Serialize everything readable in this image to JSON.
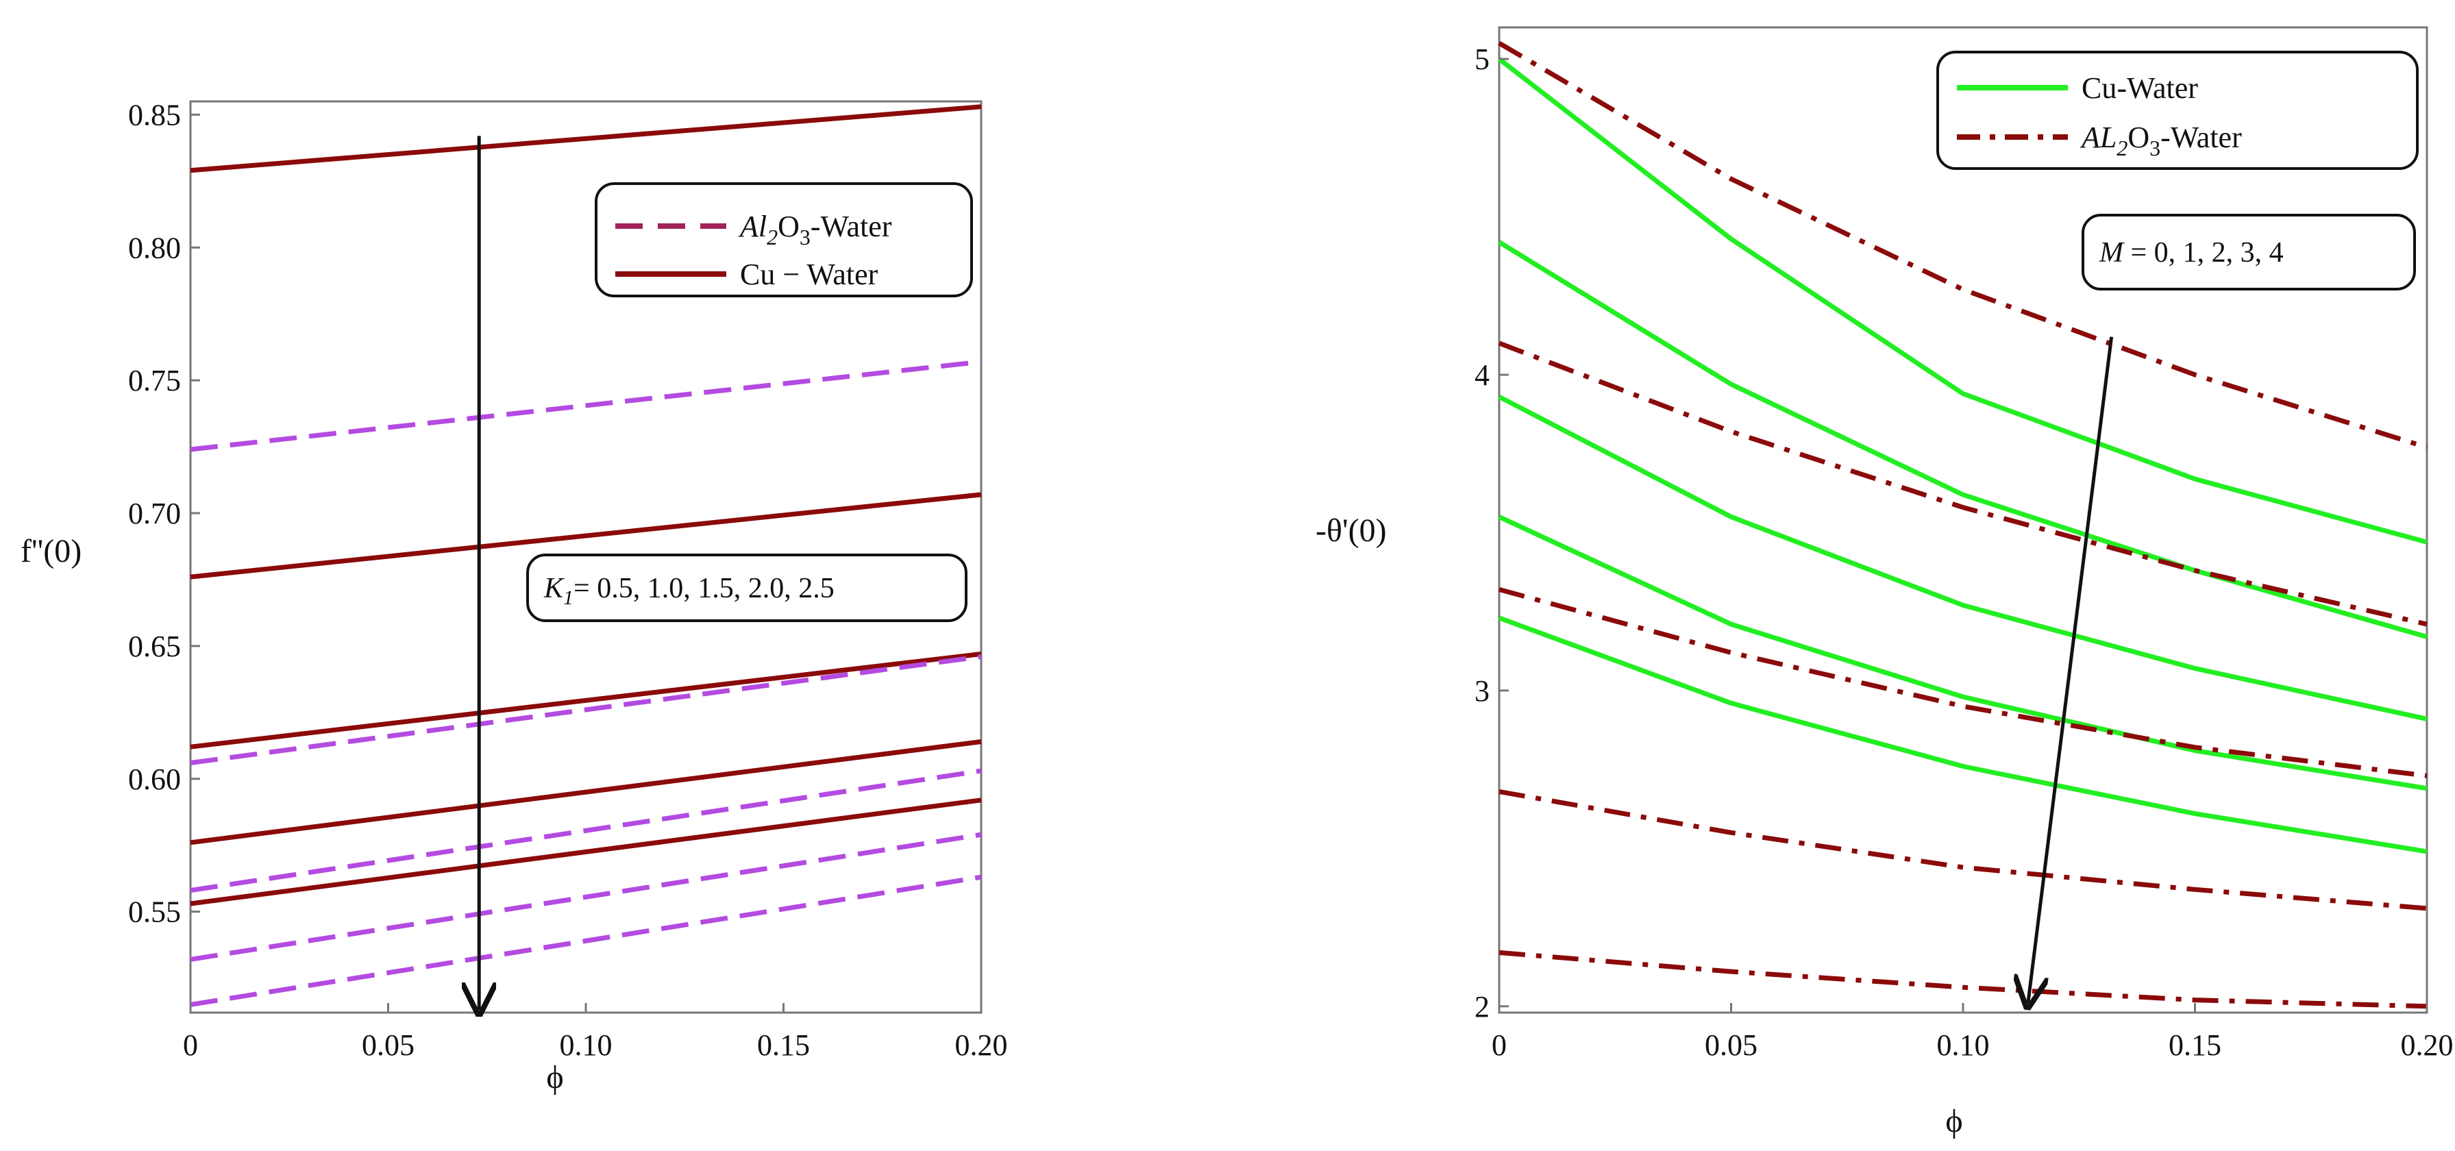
{
  "chart_data": [
    {
      "type": "line",
      "panel": "left",
      "xlabel": "ϕ",
      "ylabel": "f''(0)",
      "xlim": [
        0,
        0.2
      ],
      "ylim": [
        0.512,
        0.855
      ],
      "xticks": [
        0,
        0.05,
        0.1,
        0.15,
        0.2
      ],
      "xtick_labels": [
        "0",
        "0.05",
        "0.10",
        "0.15",
        "0.20"
      ],
      "yticks": [
        0.55,
        0.6,
        0.65,
        0.7,
        0.75,
        0.8,
        0.85
      ],
      "ytick_labels": [
        "0.55",
        "0.60",
        "0.65",
        "0.70",
        "0.75",
        "0.80",
        "0.85"
      ],
      "legend": {
        "position": "top-right",
        "entries": [
          {
            "label_base": "Al",
            "label_sub": "2",
            "label_mid": "O",
            "label_sub2": "3",
            "label_suffix": "-Water",
            "style": "dashed",
            "color": "#a0245a"
          },
          {
            "label": "Cu − Water",
            "style": "solid",
            "color": "#8b0a0a"
          }
        ]
      },
      "annotation": {
        "symbol": "K",
        "sub": "1",
        "text": "= 0.5, 1.0, 1.5, 2.0, 2.5"
      },
      "series": [
        {
          "name": "Cu-Water K1=0.5",
          "style": "solid",
          "color": "#8b0a0a",
          "x": [
            0,
            0.2
          ],
          "y": [
            0.829,
            0.853
          ]
        },
        {
          "name": "Cu-Water K1=1.0",
          "style": "solid",
          "color": "#8b0a0a",
          "x": [
            0,
            0.2
          ],
          "y": [
            0.676,
            0.707
          ]
        },
        {
          "name": "Cu-Water K1=1.5",
          "style": "solid",
          "color": "#8b0a0a",
          "x": [
            0,
            0.2
          ],
          "y": [
            0.612,
            0.647
          ]
        },
        {
          "name": "Cu-Water K1=2.0",
          "style": "solid",
          "color": "#8b0a0a",
          "x": [
            0,
            0.2
          ],
          "y": [
            0.576,
            0.614
          ]
        },
        {
          "name": "Cu-Water K1=2.5",
          "style": "solid",
          "color": "#8b0a0a",
          "x": [
            0,
            0.2
          ],
          "y": [
            0.553,
            0.592
          ]
        },
        {
          "name": "Al2O3-Water K1=0.5",
          "style": "dashed",
          "color": "#b44be1",
          "x": [
            0,
            0.2
          ],
          "y": [
            0.724,
            0.757
          ]
        },
        {
          "name": "Al2O3-Water K1=1.0",
          "style": "dashed",
          "color": "#b44be1",
          "x": [
            0,
            0.2
          ],
          "y": [
            0.606,
            0.646
          ]
        },
        {
          "name": "Al2O3-Water K1=1.5",
          "style": "dashed",
          "color": "#b44be1",
          "x": [
            0,
            0.2
          ],
          "y": [
            0.558,
            0.603
          ]
        },
        {
          "name": "Al2O3-Water K1=2.0",
          "style": "dashed",
          "color": "#b44be1",
          "x": [
            0,
            0.2
          ],
          "y": [
            0.532,
            0.579
          ]
        },
        {
          "name": "Al2O3-Water K1=2.5",
          "style": "dashed",
          "color": "#b44be1",
          "x": [
            0,
            0.2
          ],
          "y": [
            0.515,
            0.563
          ]
        }
      ],
      "arrow": {
        "x": 0.073,
        "y_from": 0.842,
        "y_to": 0.513
      }
    },
    {
      "type": "line",
      "panel": "right",
      "xlabel": "ϕ",
      "ylabel": "-θ'(0)",
      "xlim": [
        0,
        0.2
      ],
      "ylim": [
        1.98,
        5.1
      ],
      "xticks": [
        0,
        0.05,
        0.1,
        0.15,
        0.2
      ],
      "xtick_labels": [
        "0",
        "0.05",
        "0.10",
        "0.15",
        "0.20"
      ],
      "yticks": [
        2,
        3,
        4,
        5
      ],
      "ytick_labels": [
        "2",
        "3",
        "4",
        "5"
      ],
      "legend": {
        "position": "top-right",
        "entries": [
          {
            "label": "Cu-Water",
            "style": "solid",
            "color": "#22ee22"
          },
          {
            "label_base": "AL",
            "label_sub": "2",
            "label_mid": "O",
            "label_sub2": "3",
            "label_suffix": "-Water",
            "style": "dashdot",
            "color": "#8b0a0a"
          }
        ]
      },
      "annotation": {
        "symbol": "M",
        "text": " = 0, 1, 2, 3, 4"
      },
      "series": [
        {
          "name": "Cu-Water M=0",
          "style": "solid",
          "color": "#22ee22",
          "x": [
            0,
            0.05,
            0.1,
            0.15,
            0.2
          ],
          "y": [
            5.0,
            4.43,
            3.94,
            3.67,
            3.47
          ]
        },
        {
          "name": "Cu-Water M=1",
          "style": "solid",
          "color": "#22ee22",
          "x": [
            0,
            0.05,
            0.1,
            0.15,
            0.2
          ],
          "y": [
            4.42,
            3.97,
            3.62,
            3.38,
            3.17
          ]
        },
        {
          "name": "Cu-Water M=2",
          "style": "solid",
          "color": "#22ee22",
          "x": [
            0,
            0.05,
            0.1,
            0.15,
            0.2
          ],
          "y": [
            3.93,
            3.55,
            3.27,
            3.07,
            2.91
          ]
        },
        {
          "name": "Cu-Water M=3",
          "style": "solid",
          "color": "#22ee22",
          "x": [
            0,
            0.05,
            0.1,
            0.15,
            0.2
          ],
          "y": [
            3.55,
            3.21,
            2.98,
            2.81,
            2.69
          ]
        },
        {
          "name": "Cu-Water M=4",
          "style": "solid",
          "color": "#22ee22",
          "x": [
            0,
            0.05,
            0.1,
            0.15,
            0.2
          ],
          "y": [
            3.23,
            2.96,
            2.76,
            2.61,
            2.49
          ]
        },
        {
          "name": "Al2O3-Water M=0",
          "style": "dashdot",
          "color": "#8b0a0a",
          "x": [
            0,
            0.05,
            0.1,
            0.15,
            0.2
          ],
          "y": [
            5.05,
            4.62,
            4.27,
            4.0,
            3.77
          ]
        },
        {
          "name": "Al2O3-Water M=1",
          "style": "dashdot",
          "color": "#8b0a0a",
          "x": [
            0,
            0.05,
            0.1,
            0.15,
            0.2
          ],
          "y": [
            4.1,
            3.82,
            3.58,
            3.38,
            3.21
          ]
        },
        {
          "name": "Al2O3-Water M=2",
          "style": "dashdot",
          "color": "#8b0a0a",
          "x": [
            0,
            0.05,
            0.1,
            0.15,
            0.2
          ],
          "y": [
            3.32,
            3.12,
            2.95,
            2.82,
            2.73
          ]
        },
        {
          "name": "Al2O3-Water M=3",
          "style": "dashdot",
          "color": "#8b0a0a",
          "x": [
            0,
            0.05,
            0.1,
            0.15,
            0.2
          ],
          "y": [
            2.68,
            2.55,
            2.44,
            2.37,
            2.31
          ]
        },
        {
          "name": "Al2O3-Water M=4",
          "style": "dashdot",
          "color": "#8b0a0a",
          "x": [
            0,
            0.05,
            0.1,
            0.15,
            0.2
          ],
          "y": [
            2.17,
            2.11,
            2.06,
            2.02,
            2.0
          ]
        }
      ],
      "arrow": {
        "x_from": 0.132,
        "y_from": 4.12,
        "x_to": 0.114,
        "y_to": 2.01
      }
    }
  ]
}
